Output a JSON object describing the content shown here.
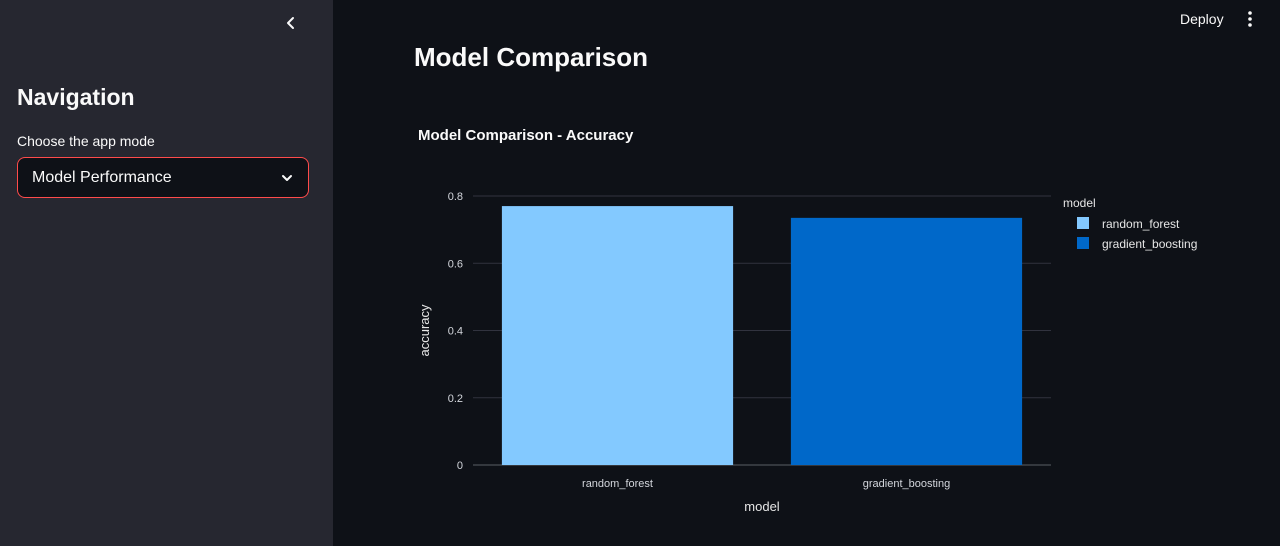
{
  "header": {
    "deploy_label": "Deploy"
  },
  "sidebar": {
    "title": "Navigation",
    "select_label": "Choose the app mode",
    "select_value": "Model Performance"
  },
  "main": {
    "title": "Model Comparison"
  },
  "colors": {
    "accent": "#ff4b4b",
    "random_forest": "#83c9ff",
    "gradient_boosting": "#0068c9"
  },
  "chart_data": {
    "type": "bar",
    "title": "Model Comparison - Accuracy",
    "xlabel": "model",
    "ylabel": "accuracy",
    "categories": [
      "random_forest",
      "gradient_boosting"
    ],
    "values": [
      0.77,
      0.735
    ],
    "ylim": [
      0,
      0.8
    ],
    "yticks": [
      "0",
      "0.2",
      "0.4",
      "0.6",
      "0.8"
    ],
    "grid": true,
    "legend": {
      "title": "model",
      "placement": "right",
      "entries": [
        "random_forest",
        "gradient_boosting"
      ]
    }
  }
}
